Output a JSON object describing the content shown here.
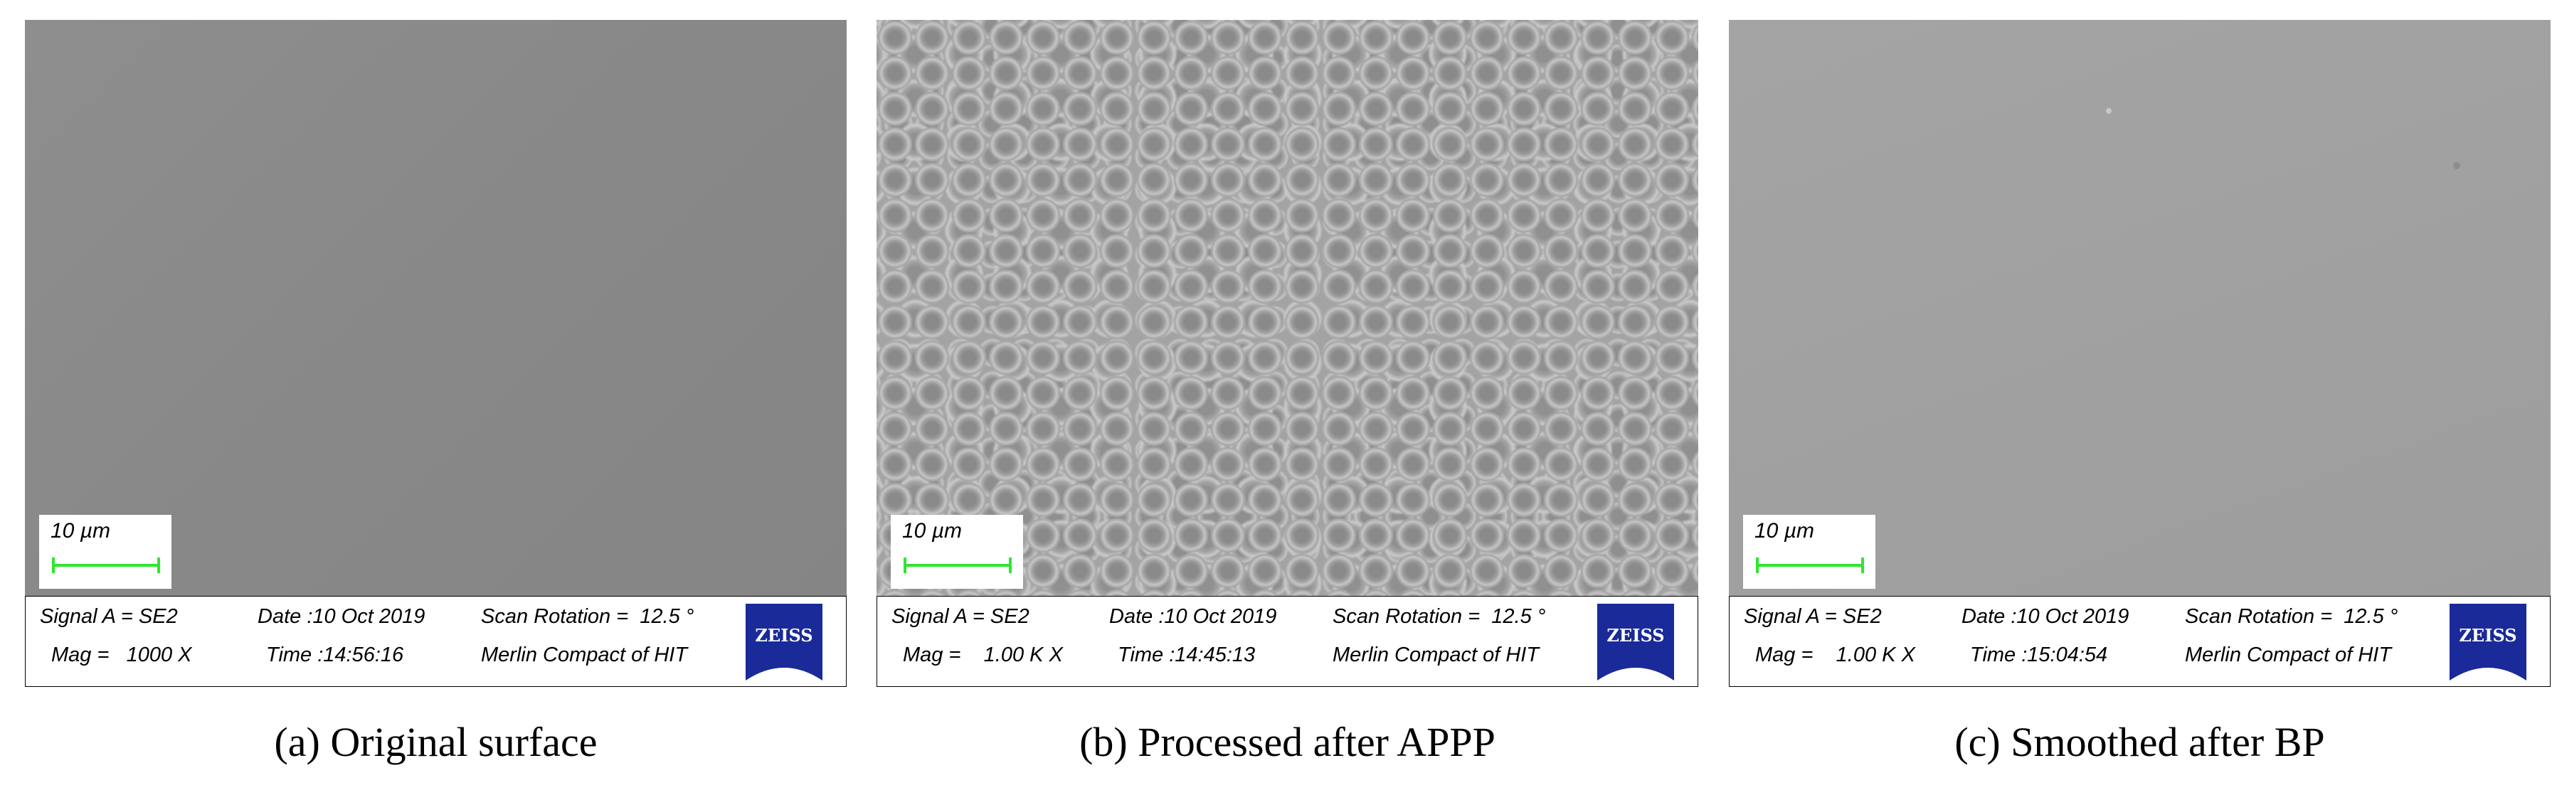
{
  "panels": [
    {
      "caption": "(a) Original surface",
      "scale_label": "10 µm",
      "signal": "Signal A = SE2",
      "mag": "Mag =   1000 X",
      "date": "Date :10 Oct 2019",
      "time": "Time :14:56:16",
      "rotation": "Scan Rotation =  12.5 °",
      "instrument": "Merlin Compact of HIT",
      "logo": "ZEISS"
    },
    {
      "caption": "(b) Processed after APPP",
      "scale_label": "10 µm",
      "signal": "Signal A = SE2",
      "mag": "Mag =    1.00 K X",
      "date": "Date :10 Oct 2019",
      "time": "Time :14:45:13",
      "rotation": "Scan Rotation =  12.5 °",
      "instrument": "Merlin Compact of HIT",
      "logo": "ZEISS"
    },
    {
      "caption": "(c) Smoothed after BP",
      "scale_label": "10 µm",
      "signal": "Signal A = SE2",
      "mag": "Mag =    1.00 K X",
      "date": "Date :10 Oct 2019",
      "time": "Time :15:04:54",
      "rotation": "Scan Rotation =  12.5 °",
      "instrument": "Merlin Compact of HIT",
      "logo": "ZEISS"
    }
  ],
  "colors": {
    "scale_bar": "#2ee62e",
    "logo_background": "#1a2a99"
  }
}
